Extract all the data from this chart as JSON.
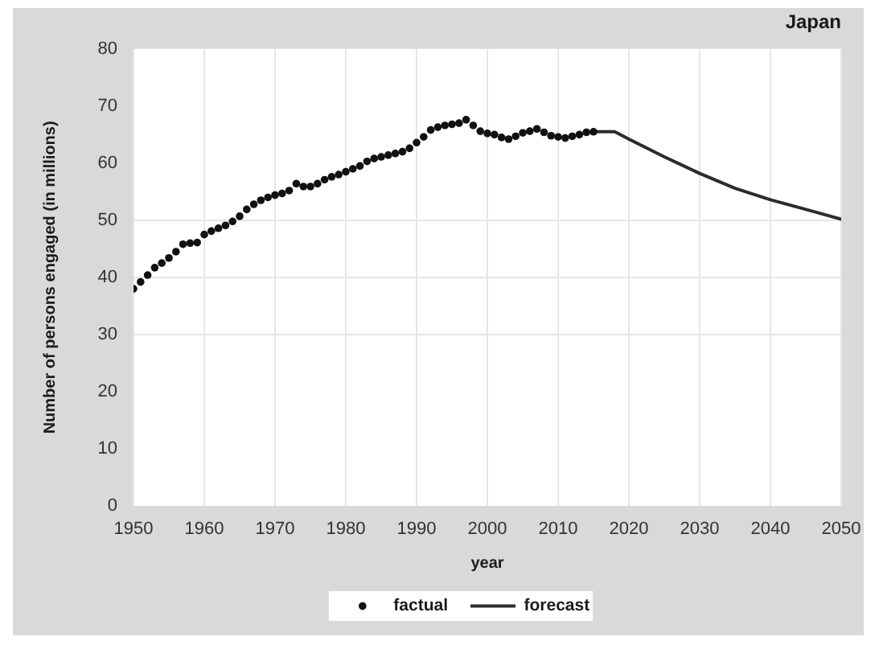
{
  "chart_data": {
    "type": "scatter",
    "title": "Japan",
    "xlabel": "year",
    "ylabel": "Number of persons engaged (in millions)",
    "xlim": [
      1950,
      2050
    ],
    "xticks": [
      1950,
      1960,
      1970,
      1980,
      1990,
      2000,
      2010,
      2020,
      2030,
      2040,
      2050
    ],
    "ylim": [
      0,
      80
    ],
    "yticks": [
      0,
      10,
      20,
      30,
      40,
      50,
      60,
      70,
      80
    ],
    "grid": "x",
    "legend": "bottom",
    "ref_lines": [
      {
        "axis": "y",
        "value": 30,
        "color": "#e6e6e6"
      },
      {
        "axis": "y",
        "value": 40,
        "color": "#e6e6e6"
      },
      {
        "axis": "y",
        "value": 50,
        "color": "#e6e6e6"
      }
    ],
    "series": [
      {
        "name": "factual",
        "type": "scatter",
        "marker": "circle",
        "color": "#111111",
        "x": [
          1950,
          1951,
          1952,
          1953,
          1954,
          1955,
          1956,
          1957,
          1958,
          1959,
          1960,
          1961,
          1962,
          1963,
          1964,
          1965,
          1966,
          1967,
          1968,
          1969,
          1970,
          1971,
          1972,
          1973,
          1974,
          1975,
          1976,
          1977,
          1978,
          1979,
          1980,
          1981,
          1982,
          1983,
          1984,
          1985,
          1986,
          1987,
          1988,
          1989,
          1990,
          1991,
          1992,
          1993,
          1994,
          1995,
          1996,
          1997,
          1998,
          1999,
          2000,
          2001,
          2002,
          2003,
          2004,
          2005,
          2006,
          2007,
          2008,
          2009,
          2010,
          2011,
          2012,
          2013,
          2014,
          2015
        ],
        "values": [
          38.0,
          39.2,
          40.4,
          41.7,
          42.5,
          43.4,
          44.5,
          45.8,
          46.0,
          46.1,
          47.5,
          48.1,
          48.6,
          49.1,
          49.8,
          50.7,
          51.9,
          52.8,
          53.5,
          54.0,
          54.4,
          54.7,
          55.2,
          56.4,
          55.9,
          55.9,
          56.4,
          57.1,
          57.6,
          58.0,
          58.5,
          59.0,
          59.5,
          60.3,
          60.8,
          61.1,
          61.4,
          61.7,
          62.0,
          62.6,
          63.6,
          64.6,
          65.8,
          66.3,
          66.6,
          66.8,
          67.0,
          67.6,
          66.6,
          65.6,
          65.2,
          65.0,
          64.5,
          64.2,
          64.7,
          65.3,
          65.6,
          66.0,
          65.4,
          64.8,
          64.6,
          64.4,
          64.7,
          65.0,
          65.4,
          65.5
        ]
      },
      {
        "name": "forecast",
        "type": "line",
        "marker": "none",
        "color": "#2b2b2b",
        "x": [
          2015,
          2016,
          2018,
          2020,
          2025,
          2030,
          2035,
          2040,
          2045,
          2050
        ],
        "values": [
          65.5,
          65.5,
          65.5,
          64.2,
          61.1,
          58.2,
          55.6,
          53.6,
          51.9,
          50.2
        ]
      }
    ]
  }
}
